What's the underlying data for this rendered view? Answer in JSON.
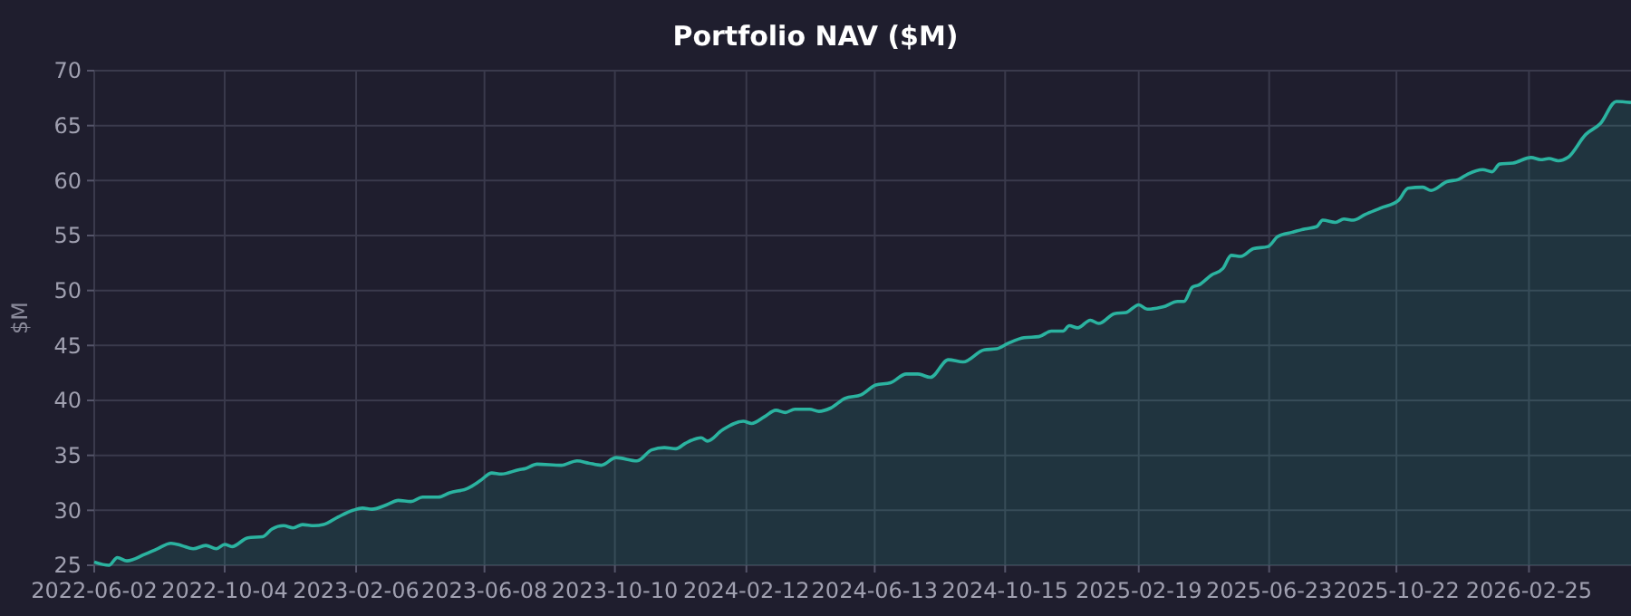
{
  "chart_data": {
    "type": "area",
    "title": "Portfolio NAV ($M)",
    "ylabel": "$M",
    "x": [
      "2022-06-02",
      "2022-06-16",
      "2022-06-24",
      "2022-07-03",
      "2022-07-20",
      "2022-08-01",
      "2022-08-14",
      "2022-08-24",
      "2022-09-04",
      "2022-09-16",
      "2022-09-26",
      "2022-10-04",
      "2022-10-11",
      "2022-10-26",
      "2022-11-09",
      "2022-11-18",
      "2022-11-29",
      "2022-12-08",
      "2022-12-17",
      "2022-12-28",
      "2023-01-06",
      "2023-01-20",
      "2023-02-03",
      "2023-02-12",
      "2023-02-21",
      "2023-03-07",
      "2023-03-18",
      "2023-03-30",
      "2023-04-10",
      "2023-04-25",
      "2023-05-06",
      "2023-05-23",
      "2023-06-04",
      "2023-06-15",
      "2023-06-24",
      "2023-07-11",
      "2023-07-17",
      "2023-07-28",
      "2023-08-20",
      "2023-09-04",
      "2023-09-15",
      "2023-09-27",
      "2023-10-11",
      "2023-10-31",
      "2023-11-14",
      "2023-11-26",
      "2023-12-07",
      "2023-12-16",
      "2023-12-31",
      "2024-01-06",
      "2024-01-20",
      "2024-02-09",
      "2024-02-17",
      "2024-02-29",
      "2024-03-11",
      "2024-03-20",
      "2024-03-29",
      "2024-04-12",
      "2024-04-21",
      "2024-05-02",
      "2024-05-16",
      "2024-05-31",
      "2024-06-14",
      "2024-06-28",
      "2024-07-13",
      "2024-07-24",
      "2024-08-05",
      "2024-08-22",
      "2024-09-05",
      "2024-09-25",
      "2024-10-07",
      "2024-10-18",
      "2024-11-02",
      "2024-11-16",
      "2024-11-28",
      "2024-12-09",
      "2024-12-15",
      "2024-12-23",
      "2025-01-04",
      "2025-01-12",
      "2025-01-27",
      "2025-02-07",
      "2025-02-19",
      "2025-02-27",
      "2025-03-14",
      "2025-03-28",
      "2025-04-03",
      "2025-04-11",
      "2025-04-17",
      "2025-04-29",
      "2025-05-10",
      "2025-05-18",
      "2025-05-27",
      "2025-06-08",
      "2025-06-22",
      "2025-07-01",
      "2025-07-15",
      "2025-07-27",
      "2025-08-07",
      "2025-08-13",
      "2025-08-25",
      "2025-09-02",
      "2025-09-11",
      "2025-09-22",
      "2025-10-07",
      "2025-10-24",
      "2025-11-02",
      "2025-11-16",
      "2025-11-24",
      "2025-12-09",
      "2025-12-20",
      "2025-12-29",
      "2026-01-12",
      "2026-01-21",
      "2026-01-28",
      "2026-02-10",
      "2026-02-27",
      "2026-03-08",
      "2026-03-16",
      "2026-03-25",
      "2026-04-03",
      "2026-04-20",
      "2026-05-04",
      "2026-05-19",
      "2026-06-02"
    ],
    "series": [
      {
        "color": "#2bb3a0",
        "values": [
          25.3,
          25.0,
          25.7,
          25.4,
          26.0,
          26.5,
          27.0,
          26.8,
          26.5,
          26.8,
          26.5,
          26.9,
          26.7,
          27.5,
          27.6,
          28.3,
          28.6,
          28.4,
          28.7,
          28.6,
          28.7,
          29.4,
          30.0,
          30.2,
          30.1,
          30.5,
          30.9,
          30.8,
          31.2,
          31.2,
          31.6,
          32.0,
          32.7,
          33.4,
          33.3,
          33.7,
          33.8,
          34.2,
          34.1,
          34.5,
          34.3,
          34.1,
          34.8,
          34.5,
          35.5,
          35.7,
          35.6,
          36.1,
          36.6,
          36.3,
          37.3,
          38.1,
          37.9,
          38.5,
          39.1,
          38.9,
          39.2,
          39.2,
          39.0,
          39.3,
          40.2,
          40.5,
          41.4,
          41.6,
          42.4,
          42.4,
          42.1,
          43.7,
          43.5,
          44.6,
          44.7,
          45.2,
          45.7,
          45.8,
          46.3,
          46.3,
          46.8,
          46.6,
          47.3,
          47.0,
          47.9,
          48.0,
          48.7,
          48.3,
          48.5,
          49.0,
          49.0,
          50.3,
          50.5,
          51.4,
          52.0,
          53.2,
          53.1,
          53.8,
          54.0,
          54.9,
          55.3,
          55.6,
          55.8,
          56.4,
          56.2,
          56.5,
          56.4,
          56.9,
          57.5,
          58.2,
          59.3,
          59.4,
          59.1,
          59.9,
          60.1,
          60.6,
          61.0,
          60.8,
          61.5,
          61.6,
          62.1,
          61.9,
          62.0,
          61.8,
          62.1,
          64.2,
          65.2,
          67.2,
          67.1
        ]
      }
    ],
    "xlim": [
      "2022-06-02",
      "2026-06-02"
    ],
    "xticks": [
      "2022-06-02",
      "2022-10-04",
      "2023-02-06",
      "2023-06-08",
      "2023-10-10",
      "2024-02-12",
      "2024-06-13",
      "2024-10-15",
      "2025-02-19",
      "2025-06-23",
      "2025-10-22",
      "2026-02-25"
    ],
    "ylim": [
      25,
      70
    ],
    "yticks": [
      25,
      30,
      35,
      40,
      45,
      50,
      55,
      60,
      65,
      70
    ],
    "grid": true
  }
}
